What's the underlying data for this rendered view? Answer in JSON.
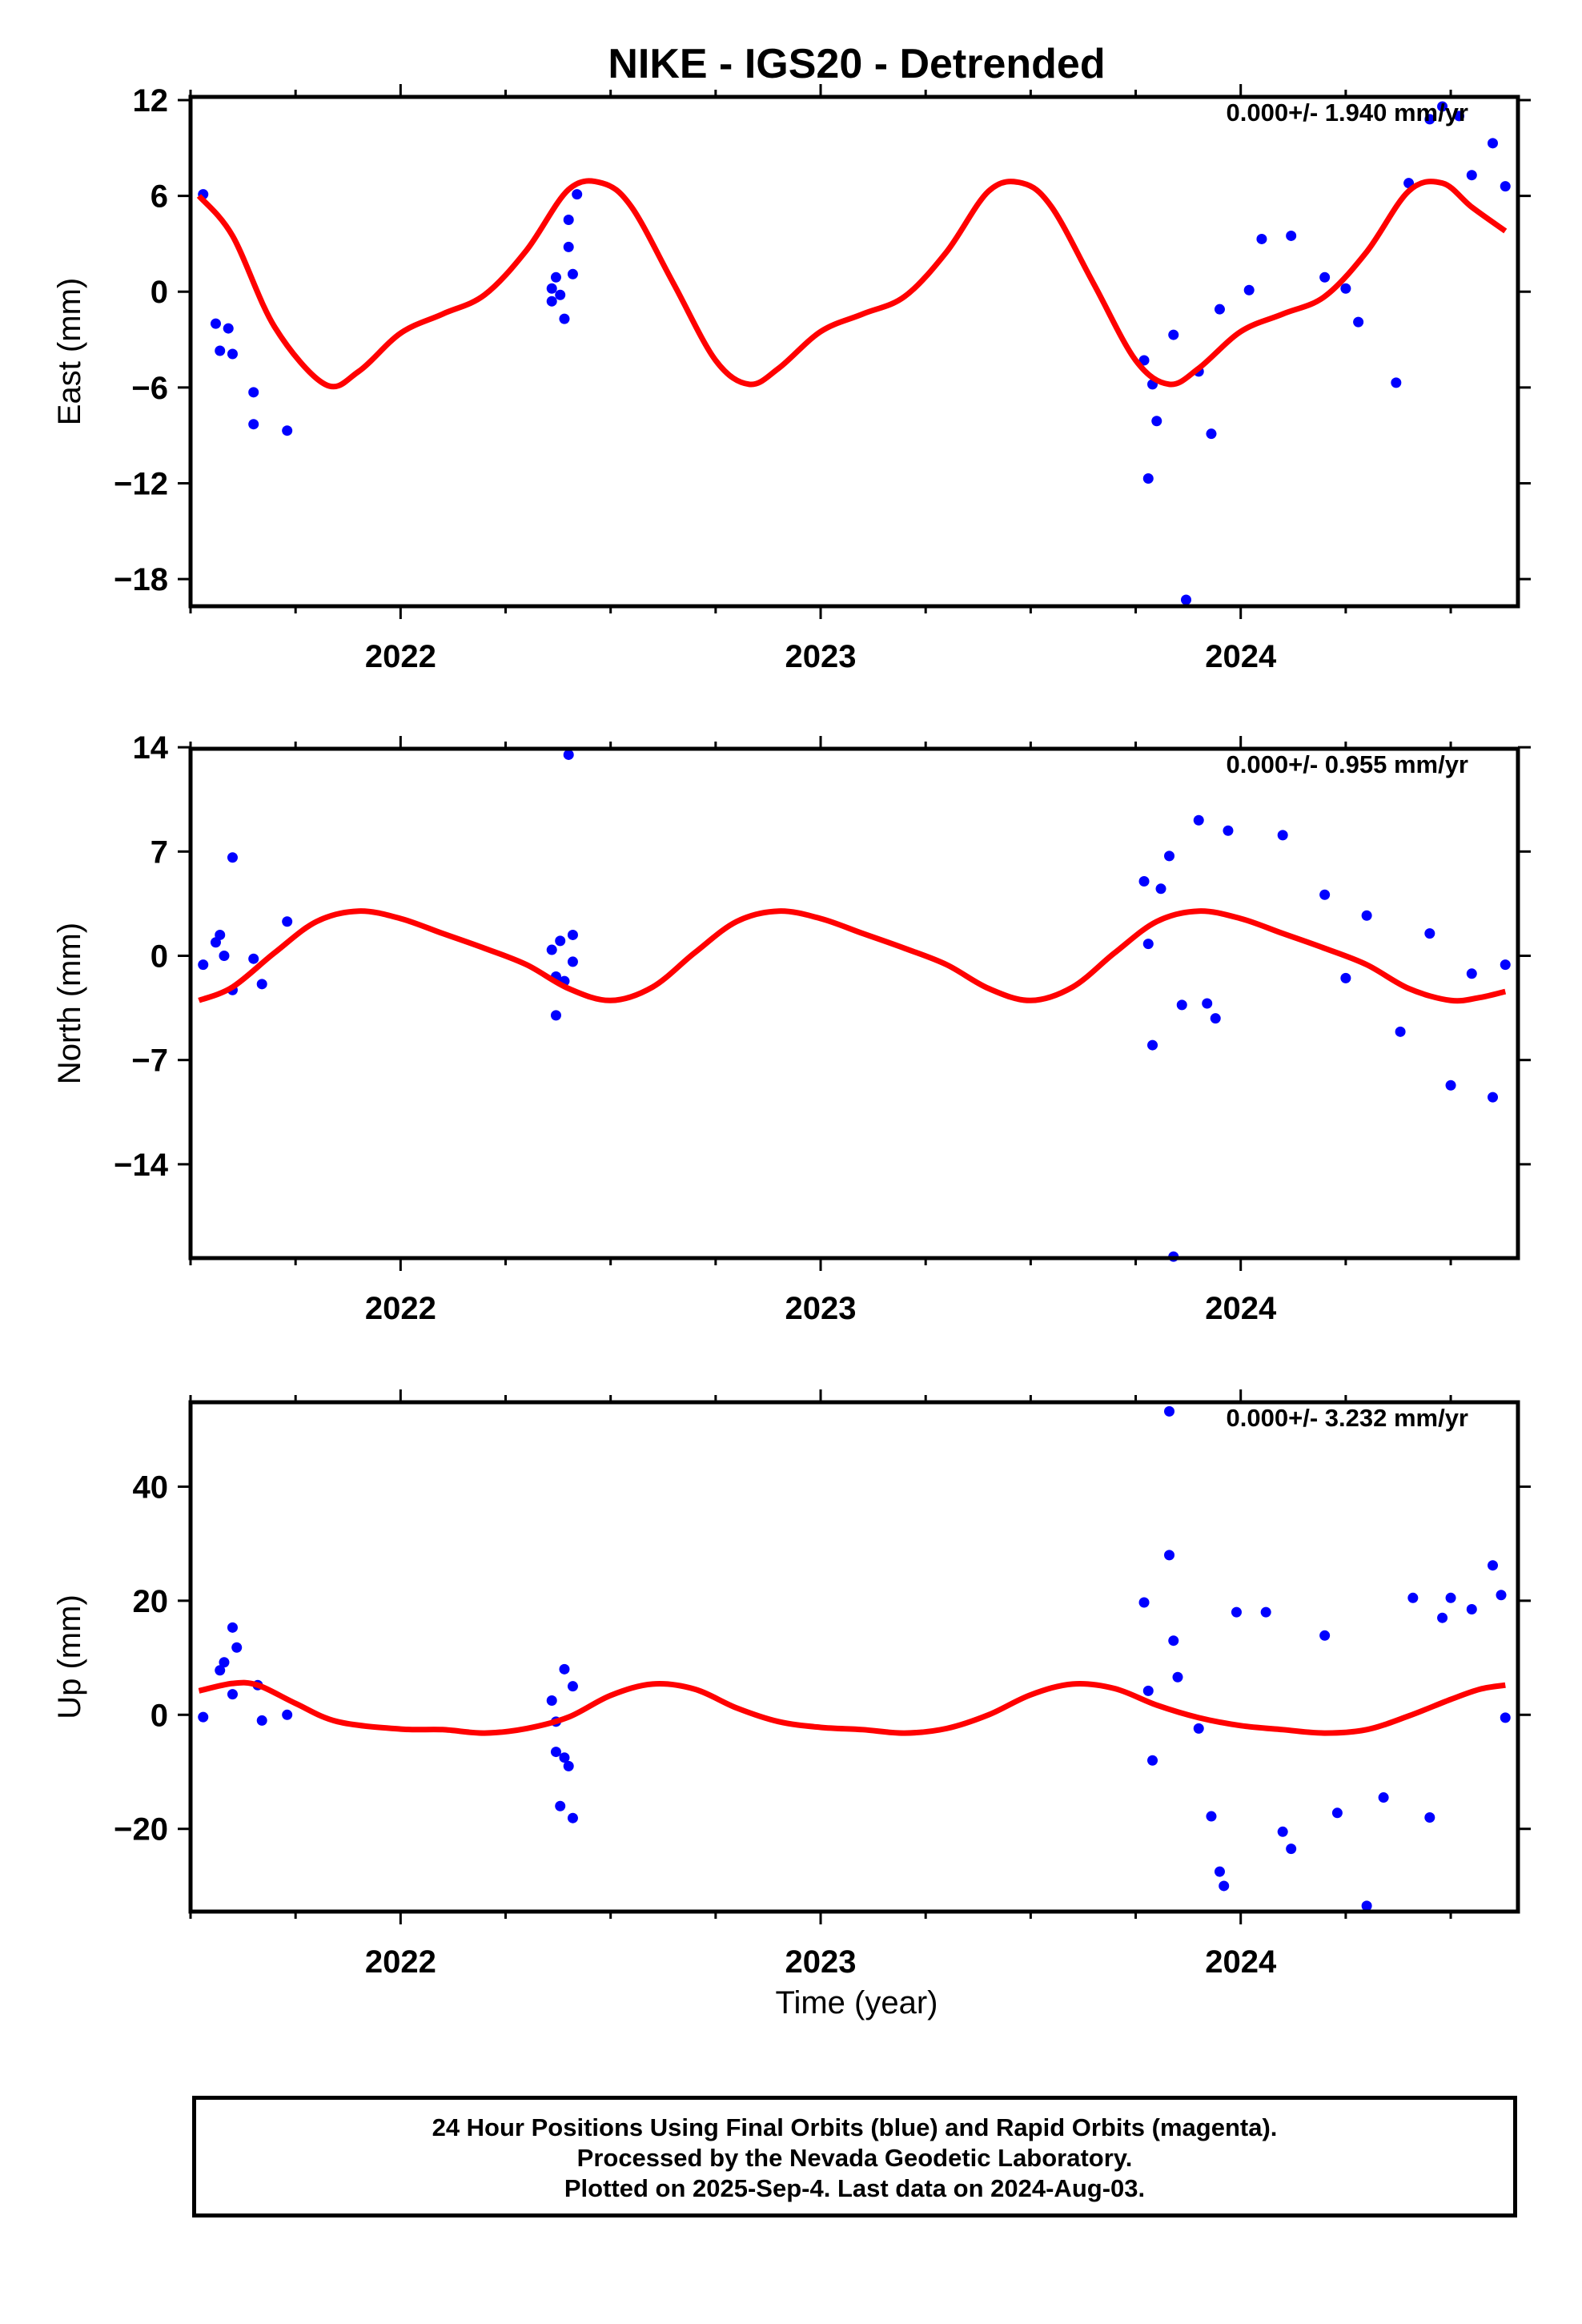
{
  "title": "NIKE - IGS20 - Detrended",
  "xlabel": "Time (year)",
  "colors": {
    "final": "#0000ff",
    "rapid": "#ff00ff",
    "model": "#ff0000"
  },
  "caption": [
    "24 Hour Positions Using Final Orbits (blue) and Rapid Orbits (magenta).",
    "Processed by the Nevada Geodetic Laboratory.",
    "Plotted on 2025-Sep-4. Last data on 2024-Aug-03."
  ],
  "chart_data": [
    {
      "type": "scatter",
      "ylabel": "East (mm)",
      "rate": "0.000+/- 1.940 mm/yr",
      "xlim": [
        2021.5,
        2024.66
      ],
      "ylim": [
        -19.7,
        12.2
      ],
      "xticks": [
        "2022",
        "2023",
        "2024"
      ],
      "xtick_values": [
        2022,
        2023,
        2024
      ],
      "yticks": [
        12,
        6,
        0,
        -6,
        -12,
        -18
      ],
      "yticklabels": [
        "12",
        "6",
        "0",
        "−6",
        "−12",
        "−18"
      ],
      "series": [
        {
          "color": "#0000ff",
          "points": [
            [
              2021.53,
              6.1
            ],
            [
              2021.56,
              -2
            ],
            [
              2021.57,
              -3.7
            ],
            [
              2021.59,
              -2.3
            ],
            [
              2021.6,
              -3.9
            ],
            [
              2021.65,
              -6.3
            ],
            [
              2021.65,
              -8.3
            ],
            [
              2021.73,
              -8.7
            ],
            [
              2022.36,
              0.2
            ],
            [
              2022.36,
              -0.6
            ],
            [
              2022.37,
              0.9
            ],
            [
              2022.38,
              -0.2
            ],
            [
              2022.39,
              -1.7
            ],
            [
              2022.4,
              2.8
            ],
            [
              2022.4,
              4.5
            ],
            [
              2022.41,
              1.1
            ],
            [
              2022.42,
              6.1
            ],
            [
              2023.77,
              -4.3
            ],
            [
              2023.78,
              -11.7
            ],
            [
              2023.79,
              -5.8
            ],
            [
              2023.8,
              -8.1
            ],
            [
              2023.84,
              -2.7
            ],
            [
              2023.87,
              -19.3
            ],
            [
              2023.9,
              -5
            ],
            [
              2023.93,
              -8.9
            ],
            [
              2023.95,
              -1.1
            ],
            [
              2024.02,
              0.1
            ],
            [
              2024.05,
              3.3
            ],
            [
              2024.12,
              3.5
            ],
            [
              2024.2,
              0.9
            ],
            [
              2024.25,
              0.2
            ],
            [
              2024.28,
              -1.9
            ],
            [
              2024.37,
              -5.7
            ],
            [
              2024.4,
              6.8
            ],
            [
              2024.45,
              10.8
            ],
            [
              2024.48,
              11.6
            ],
            [
              2024.52,
              11
            ],
            [
              2024.55,
              7.3
            ],
            [
              2024.6,
              9.3
            ],
            [
              2024.63,
              6.6
            ]
          ]
        }
      ],
      "model": [
        [
          2021.52,
          6.0
        ],
        [
          2021.6,
          3.5
        ],
        [
          2021.7,
          -2.2
        ],
        [
          2021.82,
          -5.8
        ],
        [
          2021.9,
          -5
        ],
        [
          2022,
          -2.6
        ],
        [
          2022.1,
          -1.4
        ],
        [
          2022.2,
          -0.2
        ],
        [
          2022.3,
          2.6
        ],
        [
          2022.4,
          6.4
        ],
        [
          2022.48,
          6.8
        ],
        [
          2022.55,
          5.3
        ],
        [
          2022.65,
          0.5
        ],
        [
          2022.75,
          -4.3
        ],
        [
          2022.83,
          -5.8
        ],
        [
          2022.9,
          -4.8
        ],
        [
          2023,
          -2.5
        ],
        [
          2023.1,
          -1.4
        ],
        [
          2023.2,
          -0.3
        ],
        [
          2023.3,
          2.5
        ],
        [
          2023.4,
          6.3
        ],
        [
          2023.48,
          6.8
        ],
        [
          2023.55,
          5.3
        ],
        [
          2023.65,
          0.5
        ],
        [
          2023.75,
          -4.3
        ],
        [
          2023.83,
          -5.8
        ],
        [
          2023.9,
          -4.8
        ],
        [
          2024,
          -2.5
        ],
        [
          2024.1,
          -1.4
        ],
        [
          2024.2,
          -0.3
        ],
        [
          2024.3,
          2.5
        ],
        [
          2024.4,
          6.3
        ],
        [
          2024.48,
          6.8
        ],
        [
          2024.55,
          5.3
        ],
        [
          2024.63,
          3.8
        ]
      ]
    },
    {
      "type": "scatter",
      "ylabel": "North (mm)",
      "rate": "0.000+/- 0.955 mm/yr",
      "xlim": [
        2021.5,
        2024.66
      ],
      "ylim": [
        -20.3,
        13.9
      ],
      "xticks": [
        "2022",
        "2023",
        "2024"
      ],
      "xtick_values": [
        2022,
        2023,
        2024
      ],
      "yticks": [
        14,
        7,
        0,
        -7,
        -14
      ],
      "yticklabels": [
        "14",
        "7",
        "0",
        "−7",
        "−14"
      ],
      "series": [
        {
          "color": "#0000ff",
          "points": [
            [
              2021.53,
              -0.6
            ],
            [
              2021.56,
              0.9
            ],
            [
              2021.57,
              1.4
            ],
            [
              2021.58,
              0
            ],
            [
              2021.6,
              -2.3
            ],
            [
              2021.6,
              6.6
            ],
            [
              2021.65,
              -0.2
            ],
            [
              2021.67,
              -1.9
            ],
            [
              2021.73,
              2.3
            ],
            [
              2022.36,
              0.4
            ],
            [
              2022.37,
              -1.4
            ],
            [
              2022.37,
              -4
            ],
            [
              2022.38,
              1
            ],
            [
              2022.39,
              -1.7
            ],
            [
              2022.4,
              13.5
            ],
            [
              2022.41,
              1.4
            ],
            [
              2022.41,
              -0.4
            ],
            [
              2023.77,
              5
            ],
            [
              2023.78,
              0.8
            ],
            [
              2023.79,
              -6
            ],
            [
              2023.81,
              4.5
            ],
            [
              2023.83,
              6.7
            ],
            [
              2023.84,
              -20.2
            ],
            [
              2023.86,
              -3.3
            ],
            [
              2023.9,
              9.1
            ],
            [
              2023.92,
              -3.2
            ],
            [
              2023.94,
              -4.2
            ],
            [
              2023.97,
              8.4
            ],
            [
              2024.1,
              8.1
            ],
            [
              2024.2,
              4.1
            ],
            [
              2024.25,
              -1.5
            ],
            [
              2024.3,
              2.7
            ],
            [
              2024.38,
              -5.1
            ],
            [
              2024.45,
              1.5
            ],
            [
              2024.5,
              -8.7
            ],
            [
              2024.55,
              -1.2
            ],
            [
              2024.6,
              -9.5
            ],
            [
              2024.63,
              -0.6
            ]
          ]
        }
      ],
      "model": [
        [
          2021.52,
          -3
        ],
        [
          2021.6,
          -2.1
        ],
        [
          2021.7,
          0.2
        ],
        [
          2021.8,
          2.3
        ],
        [
          2021.9,
          3
        ],
        [
          2022,
          2.5
        ],
        [
          2022.1,
          1.5
        ],
        [
          2022.2,
          0.5
        ],
        [
          2022.3,
          -0.6
        ],
        [
          2022.4,
          -2.2
        ],
        [
          2022.5,
          -3
        ],
        [
          2022.6,
          -2.1
        ],
        [
          2022.7,
          0.2
        ],
        [
          2022.8,
          2.3
        ],
        [
          2022.9,
          3
        ],
        [
          2023,
          2.5
        ],
        [
          2023.1,
          1.5
        ],
        [
          2023.2,
          0.5
        ],
        [
          2023.3,
          -0.6
        ],
        [
          2023.4,
          -2.2
        ],
        [
          2023.5,
          -3
        ],
        [
          2023.6,
          -2.1
        ],
        [
          2023.7,
          0.2
        ],
        [
          2023.8,
          2.3
        ],
        [
          2023.9,
          3
        ],
        [
          2024,
          2.5
        ],
        [
          2024.1,
          1.5
        ],
        [
          2024.2,
          0.5
        ],
        [
          2024.3,
          -0.6
        ],
        [
          2024.4,
          -2.2
        ],
        [
          2024.5,
          -3
        ],
        [
          2024.57,
          -2.8
        ],
        [
          2024.63,
          -2.4
        ]
      ]
    },
    {
      "type": "scatter",
      "ylabel": "Up (mm)",
      "rate": "0.000+/- 3.232 mm/yr",
      "xlim": [
        2021.5,
        2024.66
      ],
      "ylim": [
        -34.5,
        54.8
      ],
      "xticks": [
        "2022",
        "2023",
        "2024"
      ],
      "xtick_values": [
        2022,
        2023,
        2024
      ],
      "yticks": [
        40,
        20,
        0,
        -20
      ],
      "yticklabels": [
        "40",
        "20",
        "0",
        "−20"
      ],
      "series": [
        {
          "color": "#0000ff",
          "points": [
            [
              2021.53,
              -0.4
            ],
            [
              2021.57,
              7.8
            ],
            [
              2021.58,
              9.2
            ],
            [
              2021.6,
              3.6
            ],
            [
              2021.6,
              15.3
            ],
            [
              2021.61,
              11.8
            ],
            [
              2021.66,
              5.2
            ],
            [
              2021.67,
              -1
            ],
            [
              2021.73,
              0
            ],
            [
              2022.36,
              2.5
            ],
            [
              2022.37,
              -1.2
            ],
            [
              2022.37,
              -6.5
            ],
            [
              2022.38,
              -16
            ],
            [
              2022.39,
              8
            ],
            [
              2022.39,
              -7.5
            ],
            [
              2022.4,
              -9
            ],
            [
              2022.41,
              5
            ],
            [
              2022.41,
              -18.1
            ],
            [
              2023.77,
              19.7
            ],
            [
              2023.78,
              4.2
            ],
            [
              2023.79,
              -8
            ],
            [
              2023.83,
              53.2
            ],
            [
              2023.83,
              28
            ],
            [
              2023.84,
              13
            ],
            [
              2023.85,
              6.6
            ],
            [
              2023.9,
              -2.4
            ],
            [
              2023.93,
              -17.8
            ],
            [
              2023.95,
              -27.5
            ],
            [
              2023.96,
              -30
            ],
            [
              2023.99,
              18
            ],
            [
              2024.06,
              18
            ],
            [
              2024.1,
              -20.5
            ],
            [
              2024.12,
              -23.5
            ],
            [
              2024.2,
              13.9
            ],
            [
              2024.23,
              -17.2
            ],
            [
              2024.3,
              -33.5
            ],
            [
              2024.34,
              -14.5
            ],
            [
              2024.41,
              20.5
            ],
            [
              2024.45,
              -18
            ],
            [
              2024.48,
              17
            ],
            [
              2024.5,
              20.5
            ],
            [
              2024.55,
              18.5
            ],
            [
              2024.6,
              26.2
            ],
            [
              2024.62,
              21
            ],
            [
              2024.63,
              -0.5
            ]
          ]
        }
      ],
      "model": [
        [
          2021.52,
          4.2
        ],
        [
          2021.6,
          5.5
        ],
        [
          2021.66,
          5.2
        ],
        [
          2021.75,
          2
        ],
        [
          2021.85,
          -1.2
        ],
        [
          2022,
          -2.5
        ],
        [
          2022.1,
          -2.6
        ],
        [
          2022.2,
          -3.2
        ],
        [
          2022.3,
          -2.4
        ],
        [
          2022.4,
          -0.4
        ],
        [
          2022.5,
          3.4
        ],
        [
          2022.6,
          5.4
        ],
        [
          2022.7,
          4.5
        ],
        [
          2022.8,
          1.2
        ],
        [
          2022.9,
          -1.2
        ],
        [
          2023,
          -2.2
        ],
        [
          2023.1,
          -2.6
        ],
        [
          2023.2,
          -3.2
        ],
        [
          2023.3,
          -2.4
        ],
        [
          2023.4,
          0
        ],
        [
          2023.5,
          3.5
        ],
        [
          2023.6,
          5.4
        ],
        [
          2023.7,
          4.6
        ],
        [
          2023.8,
          1.7
        ],
        [
          2023.9,
          -0.5
        ],
        [
          2024,
          -1.9
        ],
        [
          2024.1,
          -2.6
        ],
        [
          2024.2,
          -3.2
        ],
        [
          2024.3,
          -2.6
        ],
        [
          2024.4,
          -0.2
        ],
        [
          2024.5,
          2.7
        ],
        [
          2024.57,
          4.5
        ],
        [
          2024.63,
          5.2
        ]
      ]
    }
  ]
}
